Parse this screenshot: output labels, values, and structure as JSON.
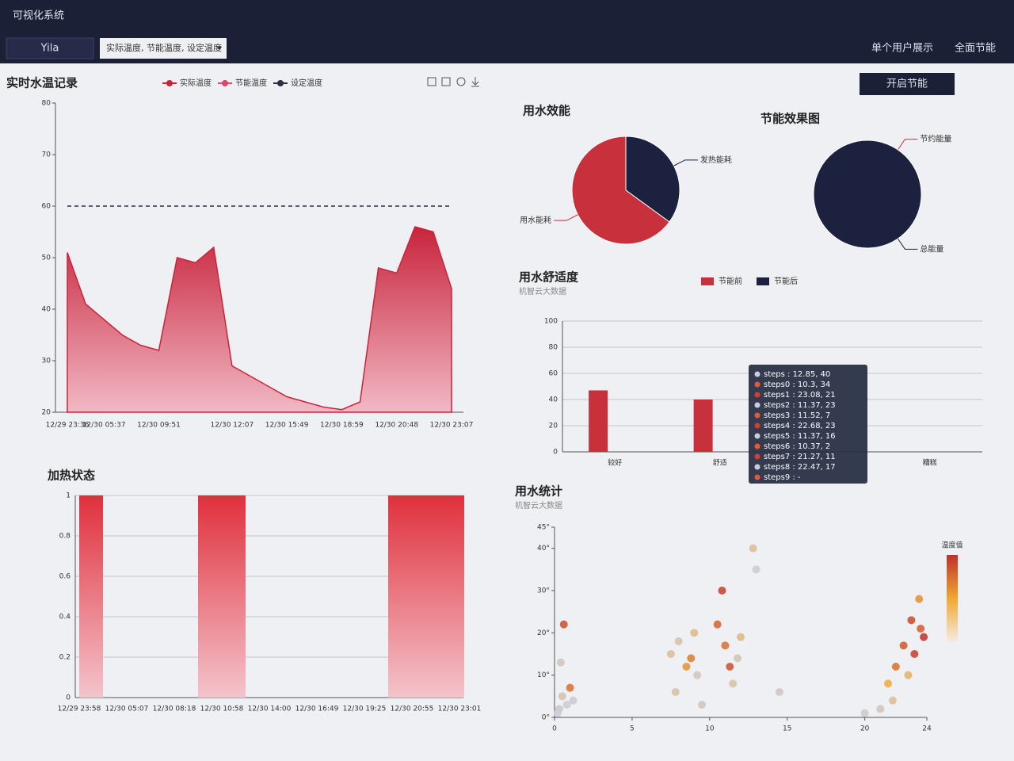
{
  "header": {
    "title": "可视化系统",
    "user": "Yila",
    "select": "实际温度, 节能温度, 设定温度",
    "nav": [
      "单个用户展示",
      "全面节能"
    ],
    "action": "开启节能"
  },
  "chart_data": [
    {
      "type": "area",
      "title": "实时水温记录",
      "categories": [
        "12/29 23:36",
        null,
        "12/30 05:37",
        null,
        null,
        "12/30 09:51",
        null,
        null,
        null,
        "12/30 12:07",
        null,
        null,
        "12/30 15:49",
        null,
        null,
        "12/30 18:59",
        null,
        null,
        "12/30 20:48",
        null,
        null,
        "12/30 23:07"
      ],
      "series": [
        {
          "name": "实际温度",
          "color": "#c8243c",
          "values": [
            51,
            41,
            38,
            35,
            33,
            32,
            50,
            49,
            52,
            29,
            27,
            25,
            23,
            22,
            21,
            20.5,
            22,
            48,
            47,
            56,
            55,
            44
          ]
        },
        {
          "name": "节能温度",
          "color": "#e0456a"
        },
        {
          "name": "设定温度",
          "color": "#2a2f45",
          "values": [
            60,
            60,
            60,
            60,
            60,
            60,
            60,
            60,
            60,
            60,
            60,
            60,
            60,
            60,
            60,
            60,
            60,
            60,
            60,
            60,
            60,
            60
          ]
        }
      ],
      "ylim": [
        20,
        80
      ],
      "yticks": [
        20,
        30,
        40,
        50,
        60,
        70,
        80
      ]
    },
    {
      "type": "step",
      "title": "加热状态",
      "categories": [
        "12/29 23:58",
        null,
        "12/30 05:07",
        null,
        "12/30 08:18",
        null,
        "12/30 10:58",
        null,
        "12/30 14:00",
        null,
        "12/30 16:49",
        null,
        "12/30 19:25",
        null,
        "12/30 20:55",
        null,
        "12/30 23:01"
      ],
      "values": [
        1,
        0,
        0,
        0,
        0,
        1,
        1,
        0,
        0,
        0,
        0,
        0,
        0,
        1,
        1,
        1,
        1
      ],
      "color": "#e0303c",
      "ylim": [
        0,
        1
      ],
      "yticks": [
        0,
        0.2,
        0.4,
        0.6,
        0.8,
        1
      ]
    },
    {
      "type": "pie",
      "title": "用水效能",
      "categories": [
        "发热能耗",
        "用水能耗"
      ],
      "values": [
        35,
        65
      ],
      "colors": [
        "#1c2140",
        "#c8303c"
      ]
    },
    {
      "type": "pie",
      "title": "节能效果图",
      "categories": [
        "节约能量",
        "总能量"
      ],
      "values": [
        0,
        100
      ],
      "colors": [
        "#c8303c",
        "#1c2140"
      ]
    },
    {
      "type": "bar",
      "title": "用水舒适度",
      "subtitle": "机智云大数据",
      "categories": [
        "较好",
        "舒适",
        null,
        "糟糕"
      ],
      "series": [
        {
          "name": "节能前",
          "color": "#c8303c",
          "values": [
            47,
            40,
            0,
            0
          ]
        },
        {
          "name": "节能后",
          "color": "#1c2140",
          "values": [
            0,
            0,
            0,
            0
          ]
        }
      ],
      "ylim": [
        0,
        100
      ],
      "yticks": [
        0,
        20,
        40,
        60,
        80,
        100
      ]
    },
    {
      "type": "scatter",
      "title": "用水统计",
      "subtitle": "机智云大数据",
      "visual_map_label": "温度值",
      "x": [
        0.3,
        0.5,
        0.8,
        1,
        0.4,
        0.6,
        1.2,
        0.2,
        7.5,
        8,
        8.5,
        9,
        9.2,
        7.8,
        8.8,
        10.5,
        11,
        11.3,
        11.5,
        12,
        10.8,
        11.8,
        12.8,
        14.5,
        13,
        9.5,
        20,
        21,
        21.5,
        22,
        22.5,
        23,
        23.2,
        23.5,
        23.8,
        22.8,
        21.8,
        23.6
      ],
      "values": [
        2,
        5,
        3,
        7,
        13,
        22,
        4,
        1,
        15,
        18,
        12,
        20,
        10,
        6,
        14,
        22,
        17,
        12,
        8,
        19,
        30,
        14,
        40,
        6,
        35,
        3,
        1,
        2,
        8,
        12,
        17,
        23,
        15,
        28,
        19,
        10,
        4,
        21
      ],
      "temps": [
        5,
        8,
        3,
        30,
        6,
        35,
        4,
        2,
        10,
        8,
        25,
        12,
        6,
        9,
        28,
        32,
        30,
        35,
        8,
        12,
        38,
        7,
        10,
        5,
        3,
        6,
        4,
        6,
        20,
        30,
        34,
        36,
        38,
        25,
        40,
        15,
        10,
        33
      ],
      "xlim": [
        0,
        24
      ],
      "xticks": [
        0,
        5,
        10,
        15,
        20,
        24
      ],
      "ylim": [
        0,
        45
      ],
      "yticks": [
        {
          "value": 0,
          "label": "0°"
        },
        {
          "value": 10,
          "label": "10°"
        },
        {
          "value": 20,
          "label": "20°"
        },
        {
          "value": 30,
          "label": "30°"
        },
        {
          "value": 40,
          "label": "40°"
        },
        {
          "value": 45,
          "label": "45°"
        }
      ],
      "tooltip": [
        "steps : 12.85, 40",
        "steps0 : 10.3, 34",
        "steps1 : 23.08, 21",
        "steps2 : 11.37, 23",
        "steps3 : 11.52, 7",
        "steps4 : 22.68, 23",
        "steps5 : 11.37, 16",
        "steps6 : 10.37, 2",
        "steps7 : 21.27, 11",
        "steps8 : 22.47, 17",
        "steps9 : -"
      ]
    }
  ]
}
